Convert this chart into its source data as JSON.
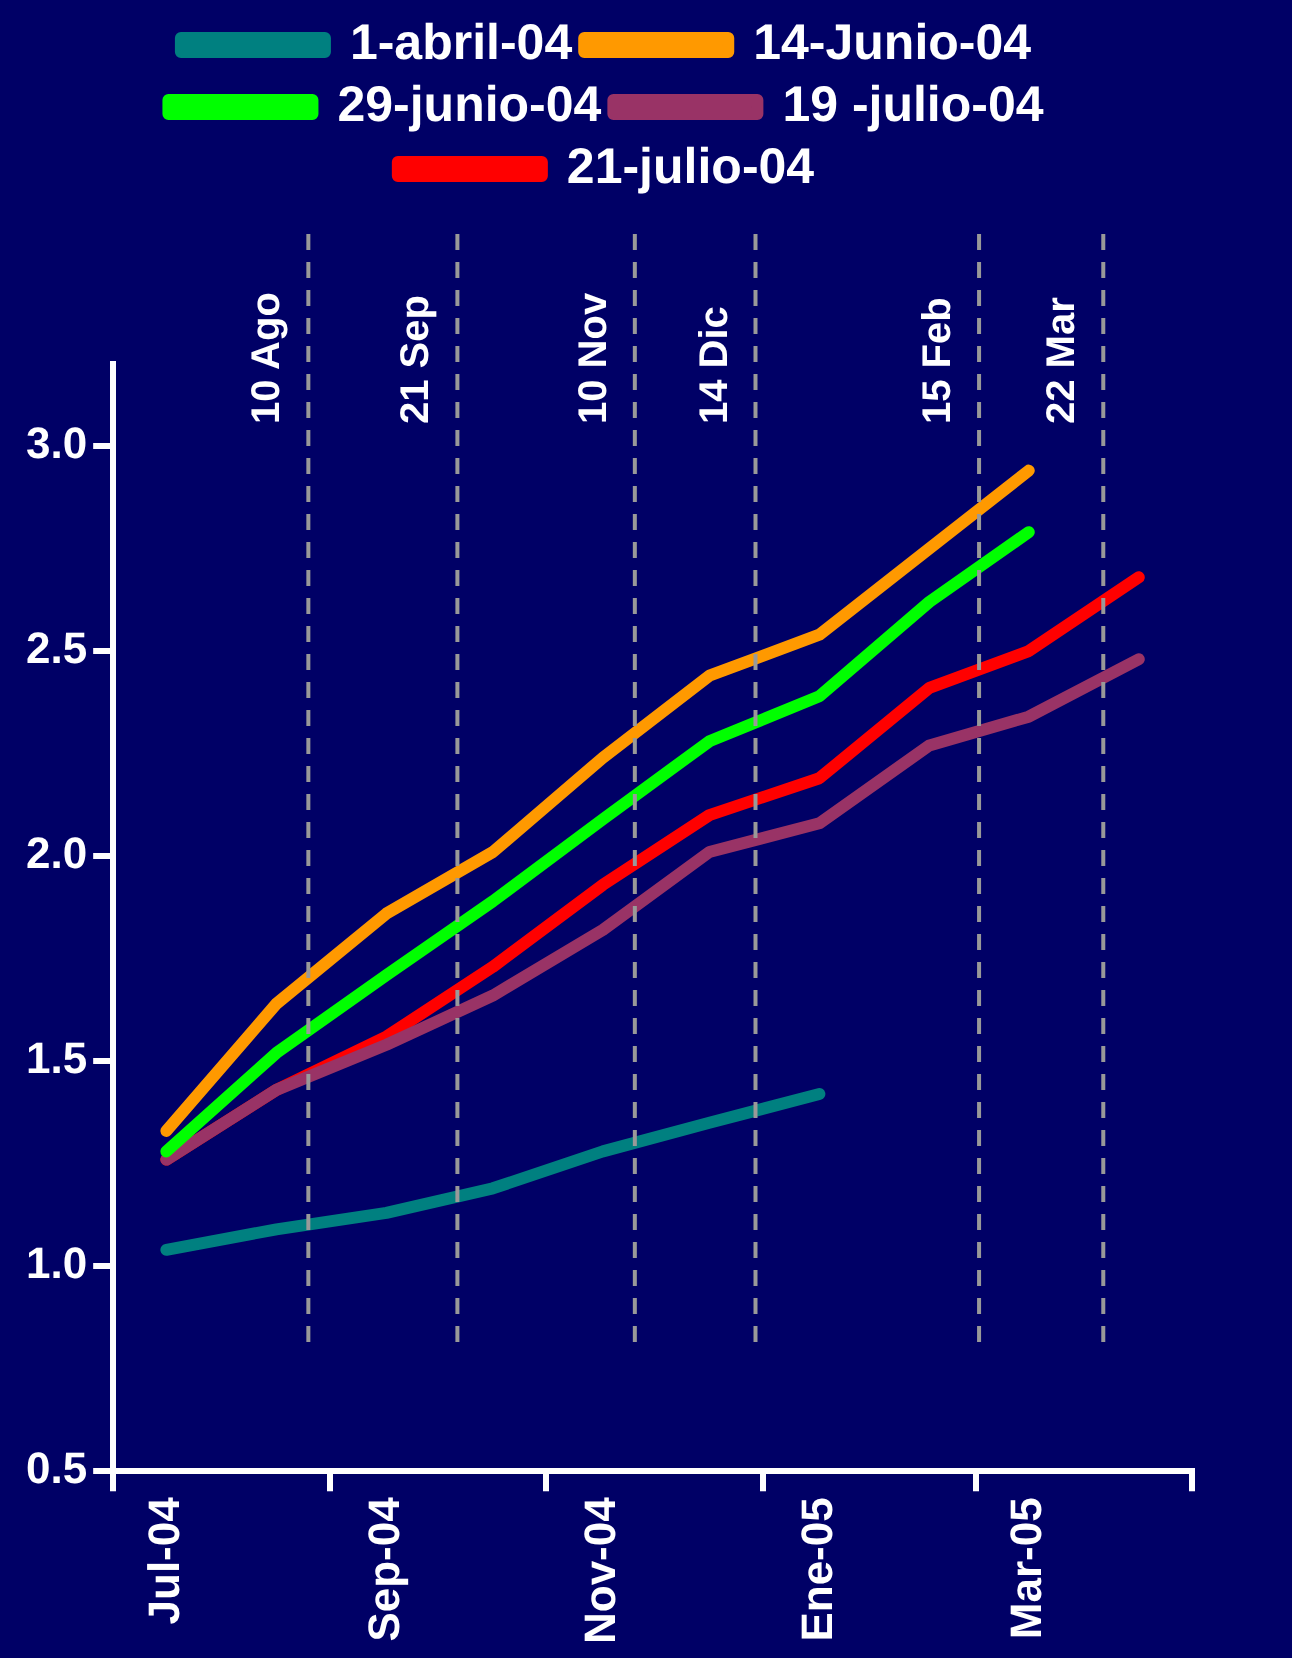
{
  "chart_data": {
    "type": "line",
    "xlim": [
      "2004-06-16",
      "2005-04-16"
    ],
    "xticks": [
      {
        "value": "2004-06-16",
        "label": null
      },
      {
        "value": "2004-07",
        "label": "Jul-04"
      },
      {
        "value": "2004-08-16",
        "label": null
      },
      {
        "value": "2004-09",
        "label": "Sep-04"
      },
      {
        "value": "2004-10-16",
        "label": null
      },
      {
        "value": "2004-11",
        "label": "Nov-04"
      },
      {
        "value": "2004-12-16",
        "label": null
      },
      {
        "value": "2005-01",
        "label": "Ene-05"
      },
      {
        "value": "2005-02-14",
        "label": null
      },
      {
        "value": "2005-03",
        "label": "Mar-05"
      },
      {
        "value": "2005-04-16",
        "label": null
      }
    ],
    "ylim": [
      0.5,
      3.2
    ],
    "yticks": [
      0.5,
      {
        "value": 1,
        "label": "1.0"
      },
      1.5,
      {
        "value": 2,
        "label": "2.0"
      },
      2.5,
      {
        "value": 3,
        "label": "3.0"
      }
    ],
    "series": [
      {
        "name": "1-abril-04",
        "color": "#008080",
        "x": [
          "2004-07",
          "2004-08",
          "2004-09",
          "2004-10",
          "2004-11",
          "2004-12",
          "2005-01"
        ],
        "values": [
          1.04,
          1.09,
          1.13,
          1.19,
          1.28,
          1.35,
          1.42
        ]
      },
      {
        "name": "14-Junio-04",
        "color": "#ff9900",
        "x": [
          "2004-07",
          "2004-08",
          "2004-09",
          "2004-10",
          "2004-11",
          "2004-12",
          "2005-01",
          "2005-02",
          "2005-03"
        ],
        "values": [
          1.33,
          1.64,
          1.86,
          2.01,
          2.24,
          2.44,
          2.54,
          2.75,
          2.94
        ]
      },
      {
        "name": "29-junio-04",
        "color": "#00ff00",
        "x": [
          "2004-07",
          "2004-08",
          "2004-09",
          "2004-10",
          "2004-11",
          "2004-12",
          "2005-01",
          "2005-02",
          "2005-03"
        ],
        "values": [
          1.28,
          1.52,
          1.71,
          1.89,
          2.09,
          2.28,
          2.39,
          2.62,
          2.79
        ]
      },
      {
        "name": "19 -julio-04",
        "color": "#993366",
        "x": [
          "2004-07",
          "2004-08",
          "2004-09",
          "2004-10",
          "2004-11",
          "2004-12",
          "2005-01",
          "2005-02",
          "2005-03",
          "2005-04"
        ],
        "values": [
          1.26,
          1.43,
          1.54,
          1.66,
          1.82,
          2.01,
          2.08,
          2.27,
          2.34,
          2.48
        ]
      },
      {
        "name": "21-julio-04",
        "color": "#ff0000",
        "x": [
          "2004-07",
          "2004-08",
          "2004-09",
          "2004-10",
          "2004-11",
          "2004-12",
          "2005-01",
          "2005-02",
          "2005-03",
          "2005-04"
        ],
        "values": [
          1.26,
          1.43,
          1.56,
          1.73,
          1.93,
          2.1,
          2.19,
          2.41,
          2.5,
          2.68
        ]
      }
    ],
    "ref_lines": [
      {
        "axis": "x",
        "value": "2004-08-10",
        "label": "10 Ago",
        "color": "#999999",
        "line_style": "dashed"
      },
      {
        "axis": "x",
        "value": "2004-09-21",
        "label": "21 Sep",
        "color": "#999999",
        "line_style": "dashed"
      },
      {
        "axis": "x",
        "value": "2004-11-10",
        "label": "10 Nov",
        "color": "#999999",
        "line_style": "dashed"
      },
      {
        "axis": "x",
        "value": "2004-12-14",
        "label": "14 Dic",
        "color": "#999999",
        "line_style": "dashed"
      },
      {
        "axis": "x",
        "value": "2005-02-15",
        "label": "15 Feb",
        "color": "#999999",
        "line_style": "dashed"
      },
      {
        "axis": "x",
        "value": "2005-03-22",
        "label": "22 Mar",
        "color": "#999999",
        "line_style": "dashed"
      }
    ],
    "legend": "top",
    "grid": false
  }
}
